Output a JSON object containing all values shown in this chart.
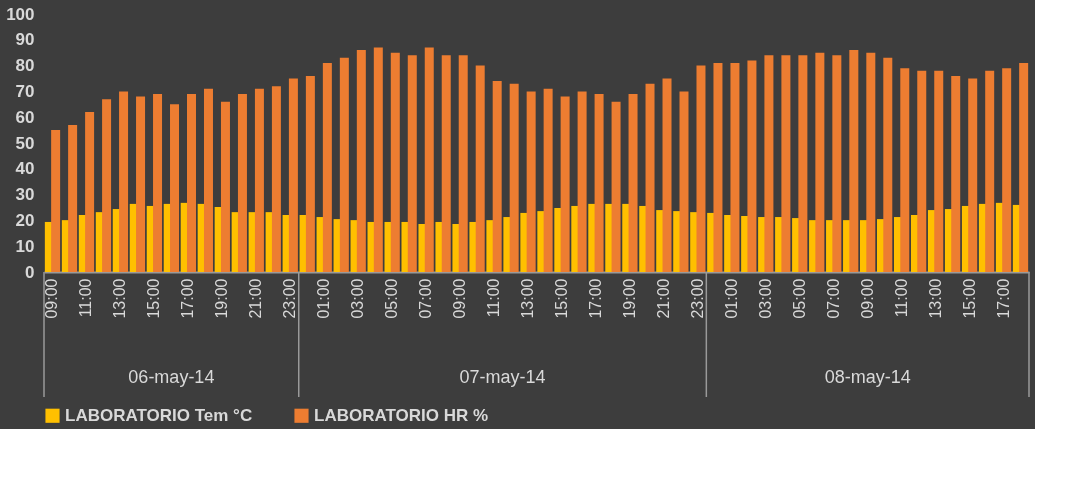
{
  "chart_data": {
    "type": "bar",
    "categories": [
      "09:00",
      null,
      "11:00",
      null,
      "13:00",
      null,
      "15:00",
      null,
      "17:00",
      null,
      "19:00",
      null,
      "21:00",
      null,
      "23:00",
      null,
      "01:00",
      null,
      "03:00",
      null,
      "05:00",
      null,
      "07:00",
      null,
      "09:00",
      null,
      "11:00",
      null,
      "13:00",
      null,
      "15:00",
      null,
      "17:00",
      null,
      "19:00",
      null,
      "21:00",
      null,
      "23:00",
      null,
      "01:00",
      null,
      "03:00",
      null,
      "05:00",
      null,
      "07:00",
      null,
      "09:00",
      null,
      "11:00",
      null,
      "13:00",
      null,
      "15:00",
      null,
      "17:00",
      null
    ],
    "series": [
      {
        "name": "LABORATORIO Tem °C",
        "color": "#ffc000",
        "values": [
          19.4,
          20.1,
          22.1,
          23.2,
          24.4,
          26.4,
          25.6,
          26.4,
          26.8,
          26.4,
          25.2,
          23.2,
          23.2,
          23.2,
          22.1,
          22.1,
          21.3,
          20.5,
          20.1,
          19.4,
          19.4,
          19.4,
          18.6,
          19.4,
          18.6,
          19.4,
          20.1,
          21.3,
          22.9,
          23.6,
          24.8,
          25.6,
          26.4,
          26.4,
          26.4,
          25.6,
          24.0,
          23.6,
          23.2,
          22.9,
          22.1,
          21.7,
          21.3,
          21.3,
          20.9,
          20.1,
          20.1,
          20.1,
          20.1,
          20.5,
          21.3,
          22.1,
          24.0,
          24.4,
          25.6,
          26.4,
          26.8,
          26.0
        ]
      },
      {
        "name": "LABORATORIO HR %",
        "color": "#ed7d31",
        "values": [
          55,
          57,
          62,
          67,
          70,
          68,
          69,
          65,
          69,
          71,
          66,
          69,
          71,
          72,
          75,
          76,
          81,
          83,
          86,
          87,
          85,
          84,
          87,
          84,
          84,
          80,
          74,
          73,
          70,
          71,
          68,
          70,
          69,
          66,
          69,
          73,
          75,
          70,
          80,
          81,
          81,
          82,
          84,
          84,
          84,
          85,
          84,
          86,
          85,
          83,
          79,
          78,
          78,
          76,
          75,
          78,
          79,
          81
        ]
      }
    ],
    "ylim": [
      0,
      100
    ],
    "yticks": [
      0,
      10,
      20,
      30,
      40,
      50,
      60,
      70,
      80,
      90,
      100
    ],
    "annotations": [
      "06-may-14",
      "07-may-14",
      "08-may-14"
    ],
    "grid": false,
    "legend": "bottom"
  }
}
